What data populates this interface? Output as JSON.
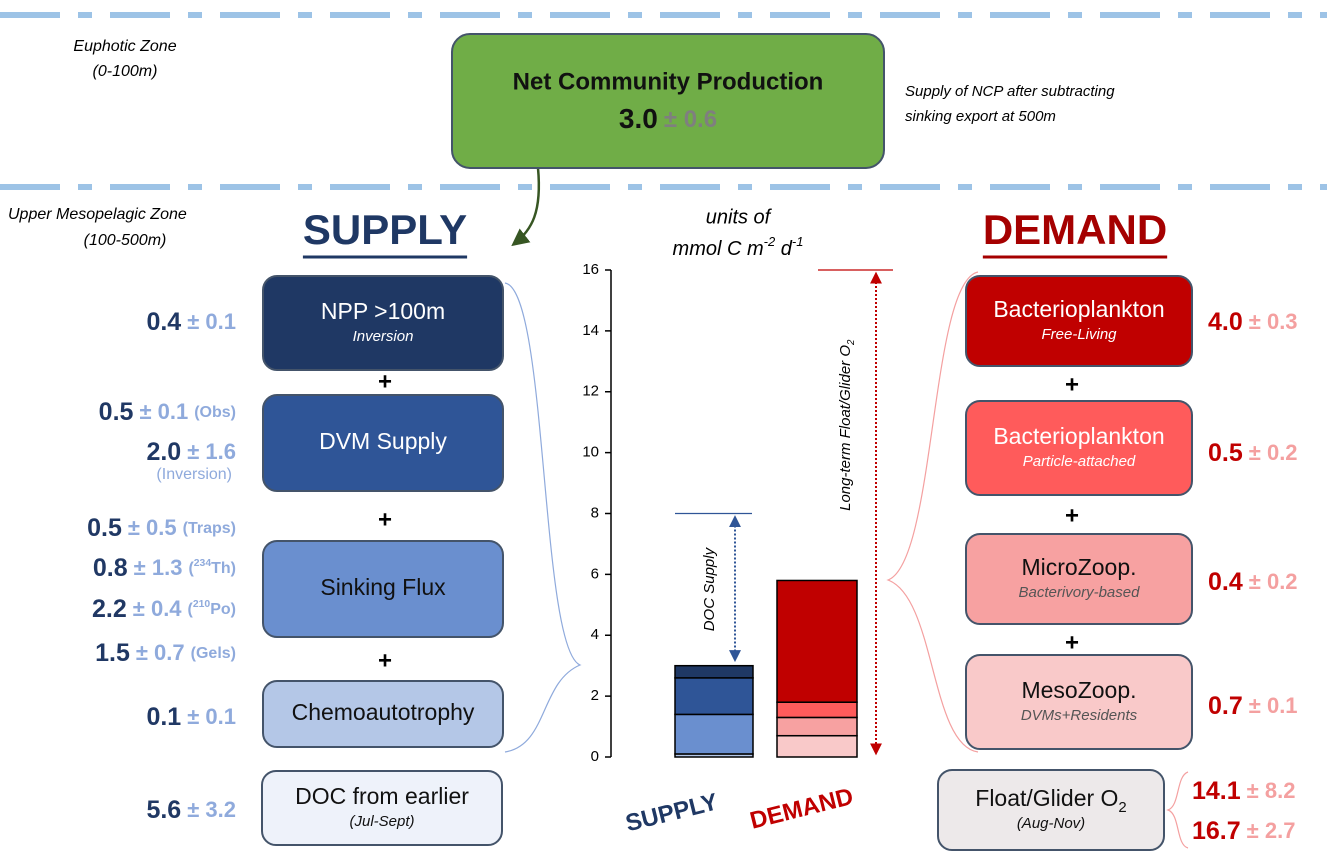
{
  "zones": {
    "euphotic": {
      "name": "Euphotic Zone",
      "depth": "(0-100m)"
    },
    "mesopelagic": {
      "name": "Upper Mesopelagic Zone",
      "depth": "(100-500m)"
    }
  },
  "ncp": {
    "title": "Net Community Production",
    "value": "3.0",
    "error": "± 0.6",
    "note": [
      "Supply of NCP after subtracting",
      "sinking export at 500m"
    ]
  },
  "supply": {
    "heading": "SUPPLY",
    "plus": "+",
    "boxes": [
      {
        "title": "NPP >100m",
        "subtitle": "Inversion",
        "estimates": [
          {
            "value": "0.4",
            "error": "± 0.1"
          }
        ]
      },
      {
        "title": "DVM Supply",
        "estimates": [
          {
            "value": "0.5",
            "error": "± 0.1",
            "method": [
              "(Obs)"
            ]
          },
          {
            "value": "2.0",
            "error": "± 1.6",
            "method": [
              "(Inversion)"
            ]
          }
        ]
      },
      {
        "title": "Sinking Flux",
        "estimates": [
          {
            "value": "0.5",
            "error": "± 0.5",
            "method": [
              "(Traps)"
            ]
          },
          {
            "value": "0.8",
            "error": "± 1.3",
            "method": [
              "(",
              {
                "sup": "234"
              },
              "Th)"
            ]
          },
          {
            "value": "2.2",
            "error": "± 0.4",
            "method": [
              "(",
              {
                "sup": "210"
              },
              "Po)"
            ]
          },
          {
            "value": "1.5",
            "error": "± 0.7",
            "method": [
              "(Gels)"
            ]
          }
        ]
      },
      {
        "title": "Chemoautotrophy",
        "estimates": [
          {
            "value": "0.1",
            "error": "± 0.1"
          }
        ]
      },
      {
        "title": "DOC from earlier",
        "subtitle": "(Jul-Sept)",
        "estimates": [
          {
            "value": "5.6",
            "error": "± 3.2"
          }
        ]
      }
    ]
  },
  "demand": {
    "heading": "DEMAND",
    "plus": "+",
    "boxes": [
      {
        "title": "Bacterioplankton",
        "subtitle": "Free-Living",
        "estimates": [
          {
            "value": "4.0",
            "error": "± 0.3"
          }
        ]
      },
      {
        "title": "Bacterioplankton",
        "subtitle": "Particle-attached",
        "estimates": [
          {
            "value": "0.5",
            "error": "± 0.2"
          }
        ]
      },
      {
        "title": "MicroZoop.",
        "subtitle": "Bacterivory-based",
        "estimates": [
          {
            "value": "0.4",
            "error": "± 0.2"
          }
        ]
      },
      {
        "title": "MesoZoop.",
        "subtitle": "DVMs+Residents",
        "estimates": [
          {
            "value": "0.7",
            "error": "± 0.1"
          }
        ]
      },
      {
        "title": [
          "Float/Glider O",
          {
            "sub": "2"
          }
        ],
        "subtitle": "(Aug-Nov)",
        "estimates": [
          {
            "value": "14.1",
            "error": "± 8.2"
          },
          {
            "value": "16.7",
            "error": "± 2.7"
          }
        ]
      }
    ]
  },
  "chart_data": {
    "type": "bar",
    "stacked": true,
    "units": [
      "units of",
      [
        "mmol C m",
        {
          "sup": "-2"
        },
        " d",
        {
          "sup": "-1"
        }
      ]
    ],
    "categories": [
      "SUPPLY",
      "DEMAND"
    ],
    "ylim": [
      0,
      16
    ],
    "yticks": [
      0,
      2,
      4,
      6,
      8,
      10,
      12,
      14,
      16
    ],
    "series": [
      {
        "values": [
          0.1,
          0.7
        ],
        "colors": [
          "#b4c7e7",
          "#f9c9c9"
        ]
      },
      {
        "values": [
          1.3,
          0.6
        ],
        "colors": [
          "#6a8fcf",
          "#f7a1a1"
        ]
      },
      {
        "values": [
          1.2,
          0.5
        ],
        "colors": [
          "#2f5597",
          "#ff5b5b"
        ]
      },
      {
        "values": [
          0.4,
          4.0
        ],
        "colors": [
          "#1f3864",
          "#c00000"
        ]
      }
    ],
    "annotations": [
      {
        "text": "DOC Supply",
        "value": 8,
        "color": "#2f5597"
      },
      {
        "text": [
          "Long-term Float/Glider O",
          {
            "sub": "2"
          }
        ],
        "value": 16,
        "color": "#c00000"
      }
    ]
  }
}
